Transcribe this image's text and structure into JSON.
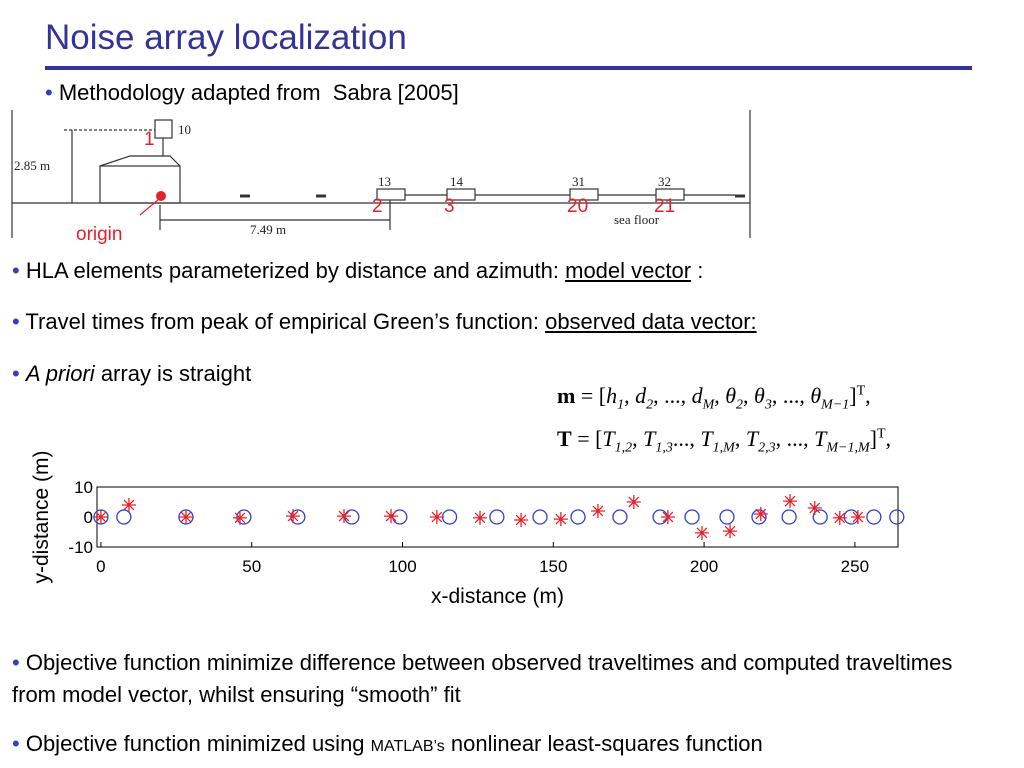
{
  "title": "Noise array localization",
  "subtitle": "Methodology adapted from  Sabra [2005]",
  "diagram": {
    "labels": [
      "10",
      "2.85 m",
      "13",
      "14",
      "31",
      "32",
      "7.49 m",
      "sea floor"
    ],
    "red_labels": [
      "1",
      "2",
      "3",
      "20",
      "21",
      "origin"
    ]
  },
  "bullets": [
    [
      "HLA elements parameterized by distance and azimuth: ",
      "model vector",
      " :"
    ],
    [
      "Travel times from peak of empirical Green’s function: ",
      "observed data vector:"
    ],
    [
      "A priori",
      " array is straight"
    ],
    [
      "Objective function minimize difference between observed traveltimes and computed traveltimes from model vector, whilst ensuring “smooth” fit"
    ],
    [
      "Objective function minimized using ",
      "MATLAB’s",
      " nonlinear least-squares function"
    ]
  ],
  "equations": [
    {
      "tokens": [
        "m",
        " = [",
        [
          "h",
          "1"
        ],
        ", ",
        [
          "d",
          "2"
        ],
        ", ..., ",
        [
          "d",
          "M"
        ],
        ", ",
        [
          "θ",
          "2"
        ],
        ", ",
        [
          "θ",
          "3"
        ],
        ", ..., ",
        [
          "θ",
          "M−1"
        ],
        "]"
      ],
      "sup": "T",
      "after": ","
    },
    {
      "tokens": [
        "T",
        " = [",
        [
          "T",
          "1,2"
        ],
        ", ",
        [
          "T",
          "1,3"
        ],
        "..., ",
        [
          "T",
          "1,M"
        ],
        ", ",
        [
          "T",
          "2,3"
        ],
        ", ..., ",
        [
          "T",
          "M−1,M"
        ],
        "]"
      ],
      "sup": "T",
      "after": ","
    }
  ],
  "chart_data": {
    "type": "scatter",
    "xlabel": "x-distance (m)",
    "ylabel": "y-distance (m)",
    "xlim": [
      -1.3,
      264.3
    ],
    "ylim": [
      -10,
      10
    ],
    "xticks": [
      0,
      50,
      100,
      150,
      200,
      250
    ],
    "yticks": [
      -10,
      0,
      10
    ],
    "series": [
      {
        "marker": "circle",
        "color": "#2b3fd6",
        "x": [
          0,
          7.6,
          28.2,
          47.4,
          65.3,
          83.2,
          99.1,
          115.6,
          131.3,
          145.6,
          158.2,
          172.1,
          185.4,
          196,
          207.6,
          218.2,
          228.2,
          238.5,
          248.8,
          256.3,
          263.9
        ],
        "y": [
          0,
          0,
          0,
          0,
          0,
          0,
          0,
          0,
          0,
          0,
          0,
          0,
          0,
          0,
          0,
          0,
          0,
          0,
          0,
          0,
          0
        ]
      },
      {
        "marker": "star",
        "color": "#e8202a",
        "x": [
          0,
          9.3,
          28.2,
          46.1,
          63.7,
          80.6,
          96.2,
          111.4,
          125.7,
          139.3,
          152.5,
          164.8,
          176.7,
          188,
          199.3,
          208.6,
          218.8,
          228.5,
          236.7,
          245,
          251
        ],
        "y": [
          0,
          4,
          0,
          -0.3,
          0.3,
          0.3,
          0.3,
          0,
          -0.3,
          -1,
          -0.7,
          2,
          5,
          0,
          -5.3,
          -4.7,
          1,
          5.3,
          3,
          -0.3,
          0
        ]
      }
    ]
  }
}
